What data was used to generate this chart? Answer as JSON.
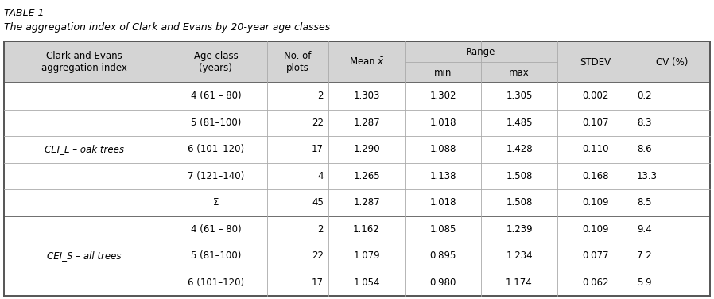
{
  "title_line1": "TABLE 1",
  "title_line2": "The aggregation index of Clark and Evans by 20-year age classes",
  "col_labels_0": [
    "Clark and Evans\naggregation index",
    "Age class\n(years)",
    "No. of\nplots",
    "Mean",
    "Range",
    "",
    "STDEV",
    "CV (%)"
  ],
  "row_age_class": [
    "4 (61 – 80)",
    "5 (81–100)",
    "6 (101–120)",
    "7 (121–140)",
    "Σ",
    "4 (61 – 80)",
    "5 (81–100)",
    "6 (101–120)"
  ],
  "row_n_plots": [
    "2",
    "22",
    "17",
    "4",
    "45",
    "2",
    "22",
    "17"
  ],
  "row_mean": [
    "1.303",
    "1.287",
    "1.290",
    "1.265",
    "1.287",
    "1.162",
    "1.079",
    "1.054"
  ],
  "row_min": [
    "1.302",
    "1.018",
    "1.088",
    "1.138",
    "1.018",
    "1.085",
    "0.895",
    "0.980"
  ],
  "row_max": [
    "1.305",
    "1.485",
    "1.428",
    "1.508",
    "1.508",
    "1.239",
    "1.234",
    "1.174"
  ],
  "row_stdev": [
    "0.002",
    "0.107",
    "0.110",
    "0.168",
    "0.109",
    "0.109",
    "0.077",
    "0.062"
  ],
  "row_cv": [
    "0.2",
    "8.3",
    "8.6",
    "13.3",
    "8.5",
    "9.4",
    "7.2",
    "5.9"
  ],
  "group_labels": [
    "CEI_L – oak trees",
    "CEI_S – all trees"
  ],
  "group_rows": [
    [
      0,
      4
    ],
    [
      5,
      7
    ]
  ],
  "header_bg": "#d4d4d4",
  "white": "#ffffff",
  "border_thin": "#aaaaaa",
  "border_thick": "#555555",
  "fig_width": 8.98,
  "fig_height": 3.76,
  "title1_fontsize": 9.0,
  "title2_fontsize": 9.0,
  "header_fontsize": 8.5,
  "data_fontsize": 8.5
}
